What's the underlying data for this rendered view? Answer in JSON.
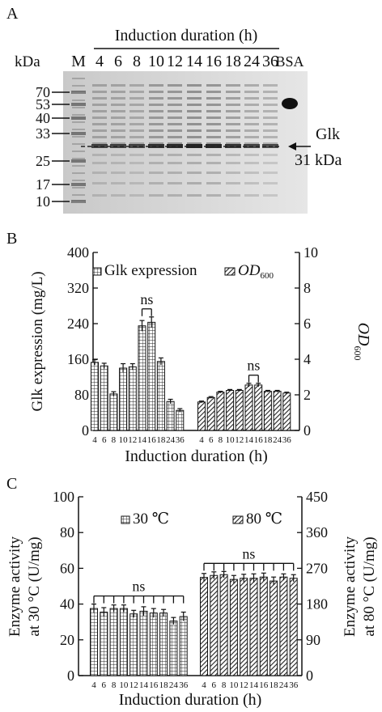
{
  "panels": {
    "a": {
      "label": "A",
      "header": "Induction duration  (h)",
      "kda_label": "kDa",
      "lane_labels": [
        "M",
        "4",
        "6",
        "8",
        "10",
        "12",
        "14",
        "16",
        "18",
        "24",
        "36",
        "BSA"
      ],
      "marker_kda": [
        "70",
        "53",
        "40",
        "33",
        "25",
        "17",
        "10"
      ],
      "band_label": "Glk",
      "band_kda": "31 kDa"
    },
    "b": {
      "label": "B"
    },
    "c": {
      "label": "C"
    }
  },
  "chart_data": [
    {
      "type": "bar",
      "categories": [
        "4",
        "6",
        "8",
        "10",
        "12",
        "14",
        "16",
        "18",
        "24",
        "36"
      ],
      "xlabel": "Induction duration (h)",
      "ylabel": "Glk expression (mg/L)",
      "ylabel2": "OD600",
      "ylim": [
        0,
        400
      ],
      "yticks": [
        0,
        80,
        160,
        240,
        320,
        400
      ],
      "ylim2": [
        0,
        10
      ],
      "yticks2": [
        0,
        2,
        4,
        6,
        8,
        10
      ],
      "series": [
        {
          "name": "Glk expression",
          "axis": "left",
          "pattern": "grid",
          "values": [
            153,
            145,
            82,
            140,
            143,
            235,
            243,
            155,
            65,
            45
          ],
          "errors": [
            6,
            6,
            5,
            10,
            7,
            12,
            12,
            8,
            5,
            4
          ]
        },
        {
          "name": "OD600",
          "axis": "right",
          "pattern": "hatch",
          "values": [
            1.6,
            1.85,
            2.15,
            2.25,
            2.25,
            2.55,
            2.55,
            2.2,
            2.2,
            2.1
          ],
          "errors": [
            0.05,
            0.05,
            0.05,
            0.05,
            0.05,
            0.1,
            0.1,
            0.05,
            0.05,
            0.05
          ]
        }
      ],
      "annotations": [
        {
          "text": "ns",
          "series": 0,
          "from": 5,
          "to": 6
        },
        {
          "text": "ns",
          "series": 1,
          "from": 5,
          "to": 6
        }
      ]
    },
    {
      "type": "bar",
      "categories": [
        "4",
        "6",
        "8",
        "10",
        "12",
        "14",
        "16",
        "18",
        "24",
        "36"
      ],
      "xlabel": "Induction duration (h)",
      "ylabel": "Enzyme activity at 30 °C (U/mg)",
      "ylabel2": "Enzyme activity at 80 °C (U/mg)",
      "ylim": [
        0,
        100
      ],
      "yticks": [
        0,
        20,
        40,
        60,
        80,
        100
      ],
      "ylim2": [
        0,
        450
      ],
      "yticks2": [
        0,
        90,
        180,
        270,
        360,
        450
      ],
      "series": [
        {
          "name": "30 ℃",
          "axis": "left",
          "pattern": "grid",
          "values": [
            37.5,
            35.5,
            37.5,
            37.5,
            34.5,
            36,
            35,
            35,
            30.5,
            33
          ],
          "errors": [
            2.5,
            2.5,
            2,
            2,
            2,
            2.5,
            2.5,
            2,
            2,
            2.5
          ]
        },
        {
          "name": "80 ℃",
          "axis": "right",
          "pattern": "hatch",
          "values": [
            247,
            252,
            254,
            242,
            245,
            245,
            248,
            238,
            248,
            245
          ],
          "errors": [
            10,
            9,
            8,
            10,
            10,
            11,
            10,
            10,
            8,
            9
          ]
        }
      ],
      "annotations": [
        {
          "text": "ns",
          "series": 0,
          "from": 0,
          "to": 9
        },
        {
          "text": "ns",
          "series": 1,
          "from": 0,
          "to": 9
        }
      ]
    }
  ]
}
